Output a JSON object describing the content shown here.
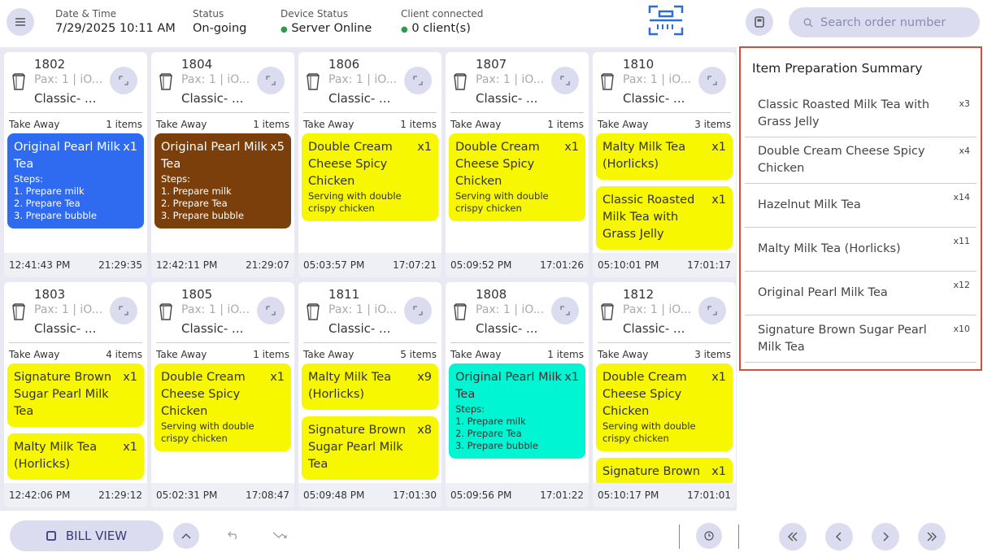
{
  "header": {
    "date_label": "Date & Time",
    "date_value": "7/29/2025 10:11 AM",
    "status_label": "Status",
    "status_value": "On-going",
    "device_label": "Device Status",
    "device_value": "Server Online",
    "client_label": "Client connected",
    "client_value": "0 client(s)",
    "search_placeholder": "Search order number"
  },
  "orders": [
    {
      "number": "1802",
      "pax": "Pax: 1 | iO...",
      "name": "Classic- ...",
      "type": "Take Away",
      "count": "1 items",
      "items": [
        {
          "name": "Original Pearl Milk Tea",
          "qty": "x1",
          "color": "#2f6bf0",
          "steps_label": "Steps:",
          "steps": [
            "1. Prepare milk",
            "2. Prepare Tea",
            "3. Prepare bubble"
          ]
        }
      ],
      "start": "12:41:43 PM",
      "elapsed": "21:29:35"
    },
    {
      "number": "1804",
      "pax": "Pax: 1 | iO...",
      "name": "Classic- ...",
      "type": "Take Away",
      "count": "1 items",
      "items": [
        {
          "name": "Original Pearl Milk Tea",
          "qty": "x5",
          "color": "#7b3f0b",
          "steps_label": "Steps:",
          "steps": [
            "1. Prepare milk",
            "2. Prepare Tea",
            "3. Prepare bubble"
          ]
        }
      ],
      "start": "12:42:11 PM",
      "elapsed": "21:29:07"
    },
    {
      "number": "1806",
      "pax": "Pax: 1 | iO...",
      "name": "Classic- ...",
      "type": "Take Away",
      "count": "1 items",
      "items": [
        {
          "name": "Double Cream Cheese Spicy Chicken",
          "qty": "x1",
          "color": "#f7f700",
          "note": "Serving with double crispy chicken"
        }
      ],
      "start": "05:03:57 PM",
      "elapsed": "17:07:21"
    },
    {
      "number": "1807",
      "pax": "Pax: 1 | iO...",
      "name": "Classic- ...",
      "type": "Take Away",
      "count": "1 items",
      "items": [
        {
          "name": "Double Cream Cheese Spicy Chicken",
          "qty": "x1",
          "color": "#f7f700",
          "note": "Serving with double crispy chicken"
        }
      ],
      "start": "05:09:52 PM",
      "elapsed": "17:01:26"
    },
    {
      "number": "1810",
      "pax": "Pax: 1 | iO...",
      "name": "Classic- ...",
      "type": "Take Away",
      "count": "3 items",
      "items": [
        {
          "name": "Malty Milk Tea (Horlicks)",
          "qty": "x1",
          "color": "#f7f700"
        },
        {
          "name": "Classic Roasted Milk Tea with Grass Jelly",
          "qty": "x1",
          "color": "#f7f700"
        }
      ],
      "start": "05:10:01 PM",
      "elapsed": "17:01:17"
    },
    {
      "number": "1803",
      "pax": "Pax: 1 | iO...",
      "name": "Classic- ...",
      "type": "Take Away",
      "count": "4 items",
      "items": [
        {
          "name": "Signature Brown Sugar Pearl Milk Tea",
          "qty": "x1",
          "color": "#f7f700"
        },
        {
          "name": "Malty Milk Tea (Horlicks)",
          "qty": "x1",
          "color": "#f7f700"
        }
      ],
      "start": "12:42:06 PM",
      "elapsed": "21:29:12"
    },
    {
      "number": "1805",
      "pax": "Pax: 1 | iO...",
      "name": "Classic- ...",
      "type": "Take Away",
      "count": "1 items",
      "items": [
        {
          "name": "Double Cream Cheese Spicy Chicken",
          "qty": "x1",
          "color": "#f7f700",
          "note": "Serving with double crispy chicken"
        }
      ],
      "start": "05:02:31 PM",
      "elapsed": "17:08:47"
    },
    {
      "number": "1811",
      "pax": "Pax: 1 | iO...",
      "name": "Classic- ...",
      "type": "Take Away",
      "count": "5 items",
      "items": [
        {
          "name": "Malty Milk Tea (Horlicks)",
          "qty": "x9",
          "color": "#f7f700"
        },
        {
          "name": "Signature Brown Sugar Pearl Milk Tea",
          "qty": "x8",
          "color": "#f7f700"
        }
      ],
      "start": "05:09:48 PM",
      "elapsed": "17:01:30"
    },
    {
      "number": "1808",
      "pax": "Pax: 1 | iO...",
      "name": "Classic- ...",
      "type": "Take Away",
      "count": "1 items",
      "items": [
        {
          "name": "Original Pearl Milk Tea",
          "qty": "x1",
          "color": "#00f5d2",
          "steps_label": "Steps:",
          "steps": [
            "1. Prepare milk",
            "2. Prepare Tea",
            "3. Prepare bubble"
          ]
        }
      ],
      "start": "05:09:56 PM",
      "elapsed": "17:01:22"
    },
    {
      "number": "1812",
      "pax": "Pax: 1 | iO...",
      "name": "Classic- ...",
      "type": "Take Away",
      "count": "3 items",
      "items": [
        {
          "name": "Double Cream Cheese Spicy Chicken",
          "qty": "x1",
          "color": "#f7f700",
          "note": "Serving with double crispy chicken"
        },
        {
          "name": "Signature Brown",
          "qty": "x1",
          "color": "#f7f700"
        }
      ],
      "start": "05:10:17 PM",
      "elapsed": "17:01:01"
    }
  ],
  "summary": {
    "title": "Item Preparation Summary",
    "items": [
      {
        "name": "Classic Roasted Milk Tea with Grass Jelly",
        "qty": "x3"
      },
      {
        "name": "Double Cream Cheese Spicy Chicken",
        "qty": "x4"
      },
      {
        "name": "Hazelnut Milk Tea",
        "qty": "x14"
      },
      {
        "name": "Malty Milk Tea (Horlicks)",
        "qty": "x11"
      },
      {
        "name": "Original Pearl Milk Tea",
        "qty": "x12"
      },
      {
        "name": "Signature Brown Sugar Pearl Milk Tea",
        "qty": "x10"
      }
    ]
  },
  "footer": {
    "bill_view": "BILL VIEW"
  }
}
